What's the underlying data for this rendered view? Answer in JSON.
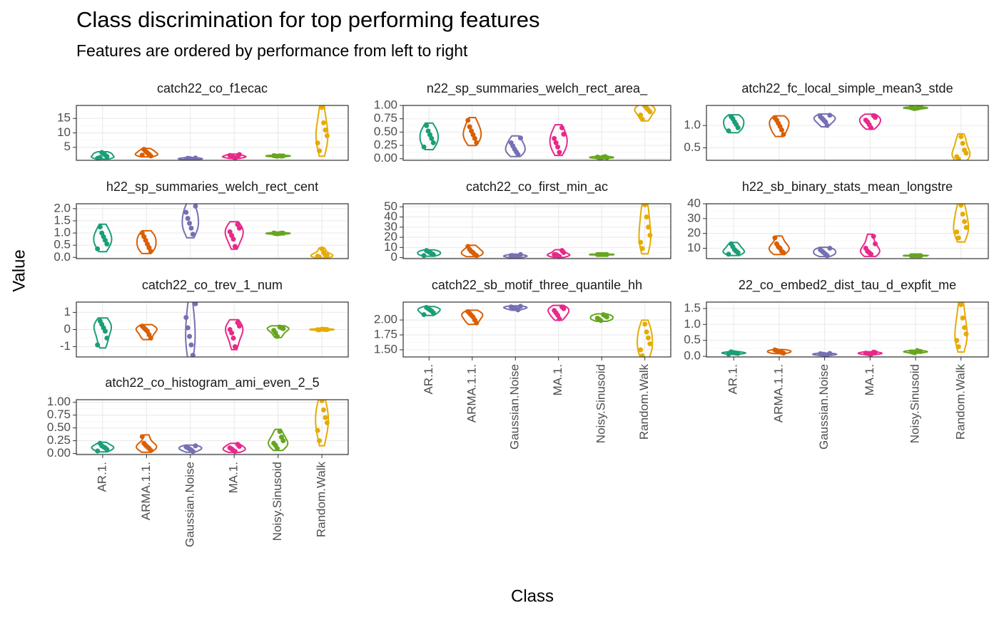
{
  "chart_data": {
    "type": "violin",
    "title": "Class discrimination for top performing features",
    "subtitle": "Features are ordered by performance from left to right",
    "x_label": "Class",
    "y_label": "Value",
    "categories": [
      "AR.1.",
      "ARMA.1.1.",
      "Gaussian.Noise",
      "MA.1.",
      "Noisy.Sinusoid",
      "Random.Walk"
    ],
    "colors": [
      "#1b9e77",
      "#d95f02",
      "#7570b3",
      "#e7298a",
      "#66a61e",
      "#e6ab02"
    ],
    "grid": true,
    "panels": [
      {
        "title": "catch22_co_f1ecac",
        "ylim": [
          0.5,
          19.5
        ],
        "yticks": [
          5,
          10,
          15
        ],
        "values": [
          [
            1.2,
            1.8,
            2.3,
            2.8,
            3.2,
            1.5
          ],
          [
            2,
            2.6,
            3.1,
            3.6,
            4.3,
            2.3
          ],
          [
            0.8,
            1,
            1.1,
            1.2,
            0.9,
            1.3
          ],
          [
            1.3,
            1.6,
            1.9,
            2.2,
            2.5,
            1.7
          ],
          [
            1.9,
            2,
            2.1,
            2,
            1.95,
            2.05
          ],
          [
            3.8,
            6.5,
            9,
            11,
            13.5,
            18.8
          ]
        ]
      },
      {
        "title": "n22_sp_summaries_welch_rect_area_",
        "ylim": [
          -0.03,
          1.0
        ],
        "yticks": [
          {
            "value": 0,
            "label": "0.00"
          },
          {
            "value": 0.25,
            "label": "0.25"
          },
          {
            "value": 0.5,
            "label": "0.50"
          },
          {
            "value": 0.75,
            "label": "0.75"
          },
          {
            "value": 1,
            "label": "1.00"
          }
        ],
        "values": [
          [
            0.22,
            0.3,
            0.38,
            0.45,
            0.52,
            0.62
          ],
          [
            0.3,
            0.38,
            0.45,
            0.52,
            0.6,
            0.72
          ],
          [
            0.08,
            0.13,
            0.18,
            0.24,
            0.3,
            0.39
          ],
          [
            0.12,
            0.22,
            0.3,
            0.38,
            0.46,
            0.58
          ],
          [
            0.01,
            0.02,
            0.03,
            0.02,
            0.04,
            0.03
          ],
          [
            0.74,
            0.82,
            0.88,
            0.92,
            0.95,
            0.99
          ]
        ]
      },
      {
        "title": "atch22_fc_local_simple_mean3_stde",
        "ylim": [
          0.22,
          1.45
        ],
        "yticks": [
          0.5,
          {
            "value": 1,
            "label": "1.0"
          }
        ],
        "values": [
          [
            0.88,
            0.95,
            1.02,
            1.08,
            1.15,
            1.2
          ],
          [
            0.8,
            0.9,
            0.98,
            1.05,
            1.12,
            1.17
          ],
          [
            1.0,
            1.08,
            1.12,
            1.16,
            1.2,
            1.23
          ],
          [
            0.95,
            1.02,
            1.08,
            1.12,
            1.18,
            1.22
          ],
          [
            1.38,
            1.39,
            1.4,
            1.41,
            1.4,
            1.39
          ],
          [
            0.25,
            0.3,
            0.38,
            0.45,
            0.6,
            0.75
          ]
        ]
      },
      {
        "title": "h22_sp_summaries_welch_rect_cent",
        "ylim": [
          -0.05,
          2.2
        ],
        "yticks": [
          {
            "value": 0,
            "label": "0.0"
          },
          0.5,
          {
            "value": 1,
            "label": "1.0"
          },
          1.5,
          {
            "value": 2,
            "label": "2.0"
          }
        ],
        "values": [
          [
            0.35,
            0.55,
            0.7,
            0.85,
            1.0,
            1.25
          ],
          [
            0.25,
            0.4,
            0.55,
            0.7,
            0.85,
            1.0
          ],
          [
            0.95,
            1.2,
            1.4,
            1.6,
            1.85,
            2.1
          ],
          [
            0.45,
            0.75,
            0.9,
            1.05,
            1.2,
            1.35
          ],
          [
            0.97,
            0.98,
            1.0,
            0.99,
            1.0,
            0.98
          ],
          [
            0.02,
            0.05,
            0.08,
            0.1,
            0.2,
            0.35
          ]
        ]
      },
      {
        "title": "catch22_co_first_min_ac",
        "ylim": [
          -1,
          53
        ],
        "yticks": [
          0,
          10,
          20,
          30,
          40,
          50
        ],
        "values": [
          [
            2,
            3,
            4,
            5,
            6,
            7
          ],
          [
            2,
            3,
            5,
            6,
            8,
            11
          ],
          [
            0,
            1,
            1,
            2,
            2,
            3
          ],
          [
            1,
            2,
            3,
            3,
            5,
            7
          ],
          [
            3,
            3,
            3,
            3,
            3,
            3
          ],
          [
            9,
            15,
            22,
            30,
            40,
            52
          ]
        ]
      },
      {
        "title": "h22_sb_binary_stats_mean_longstre",
        "ylim": [
          3,
          40
        ],
        "yticks": [
          10,
          20,
          30,
          40
        ],
        "values": [
          [
            6,
            7,
            8,
            9,
            11,
            13
          ],
          [
            7,
            8,
            10,
            11,
            13,
            17
          ],
          [
            5,
            6,
            7,
            8,
            9,
            10
          ],
          [
            6,
            7,
            8,
            10,
            13,
            18
          ],
          [
            5,
            5,
            5,
            5,
            5,
            5
          ],
          [
            17,
            21,
            24,
            28,
            33,
            39
          ]
        ]
      },
      {
        "title": "catch22_co_trev_1_num",
        "ylim": [
          -1.6,
          1.6
        ],
        "yticks": [
          -1,
          0,
          1
        ],
        "values": [
          [
            -0.9,
            -0.5,
            -0.1,
            0.1,
            0.3,
            0.5
          ],
          [
            -0.5,
            -0.3,
            -0.1,
            0,
            0.1,
            0.2
          ],
          [
            -1.5,
            -0.9,
            -0.4,
            0.1,
            0.7,
            1.5
          ],
          [
            -1.0,
            -0.5,
            -0.2,
            0,
            0.2,
            0.4
          ],
          [
            -0.4,
            -0.2,
            -0.05,
            0.05,
            0.1,
            0.15
          ],
          [
            -0.02,
            -0.01,
            0,
            0,
            0.01,
            0.02
          ]
        ]
      },
      {
        "title": "catch22_sb_motif_three_quantile_hh",
        "ylim": [
          1.38,
          2.3
        ],
        "yticks": [
          {
            "value": 1.5,
            "label": "1.50"
          },
          1.75,
          {
            "value": 2,
            "label": "2.00"
          }
        ],
        "values": [
          [
            2.09,
            2.12,
            2.15,
            2.17,
            2.19,
            2.21
          ],
          [
            1.95,
            2.0,
            2.05,
            2.08,
            2.11,
            2.14
          ],
          [
            2.17,
            2.19,
            2.2,
            2.21,
            2.22,
            2.23
          ],
          [
            2.02,
            2.08,
            2.12,
            2.16,
            2.19,
            2.22
          ],
          [
            1.99,
            2.01,
            2.03,
            2.05,
            2.07,
            2.09
          ],
          [
            1.4,
            1.5,
            1.6,
            1.7,
            1.8,
            1.93
          ]
        ]
      },
      {
        "title": "22_co_embed2_dist_tau_d_expfit_me",
        "ylim": [
          -0.02,
          1.7
        ],
        "yticks": [
          {
            "value": 0,
            "label": "0.0"
          },
          0.5,
          {
            "value": 1,
            "label": "1.0"
          },
          1.5
        ],
        "values": [
          [
            0.07,
            0.09,
            0.1,
            0.11,
            0.12,
            0.14
          ],
          [
            0.1,
            0.12,
            0.14,
            0.16,
            0.18,
            0.2
          ],
          [
            0.04,
            0.05,
            0.06,
            0.07,
            0.08,
            0.09
          ],
          [
            0.06,
            0.08,
            0.09,
            0.1,
            0.12,
            0.13
          ],
          [
            0.11,
            0.13,
            0.14,
            0.15,
            0.16,
            0.18
          ],
          [
            0.3,
            0.5,
            0.7,
            0.9,
            1.2,
            1.62
          ]
        ]
      },
      {
        "title": "atch22_co_histogram_ami_even_2_5",
        "ylim": [
          -0.02,
          1.05
        ],
        "yticks": [
          {
            "value": 0,
            "label": "0.00"
          },
          0.25,
          {
            "value": 0.5,
            "label": "0.50"
          },
          0.75,
          {
            "value": 1,
            "label": "1.00"
          }
        ],
        "values": [
          [
            0.05,
            0.08,
            0.11,
            0.13,
            0.15,
            0.2
          ],
          [
            0.06,
            0.1,
            0.13,
            0.16,
            0.2,
            0.33
          ],
          [
            0.04,
            0.07,
            0.09,
            0.11,
            0.13,
            0.15
          ],
          [
            0.04,
            0.06,
            0.09,
            0.11,
            0.14,
            0.18
          ],
          [
            0.1,
            0.16,
            0.2,
            0.25,
            0.32,
            0.43
          ],
          [
            0.25,
            0.45,
            0.6,
            0.7,
            0.85,
            1.03
          ]
        ]
      }
    ]
  }
}
